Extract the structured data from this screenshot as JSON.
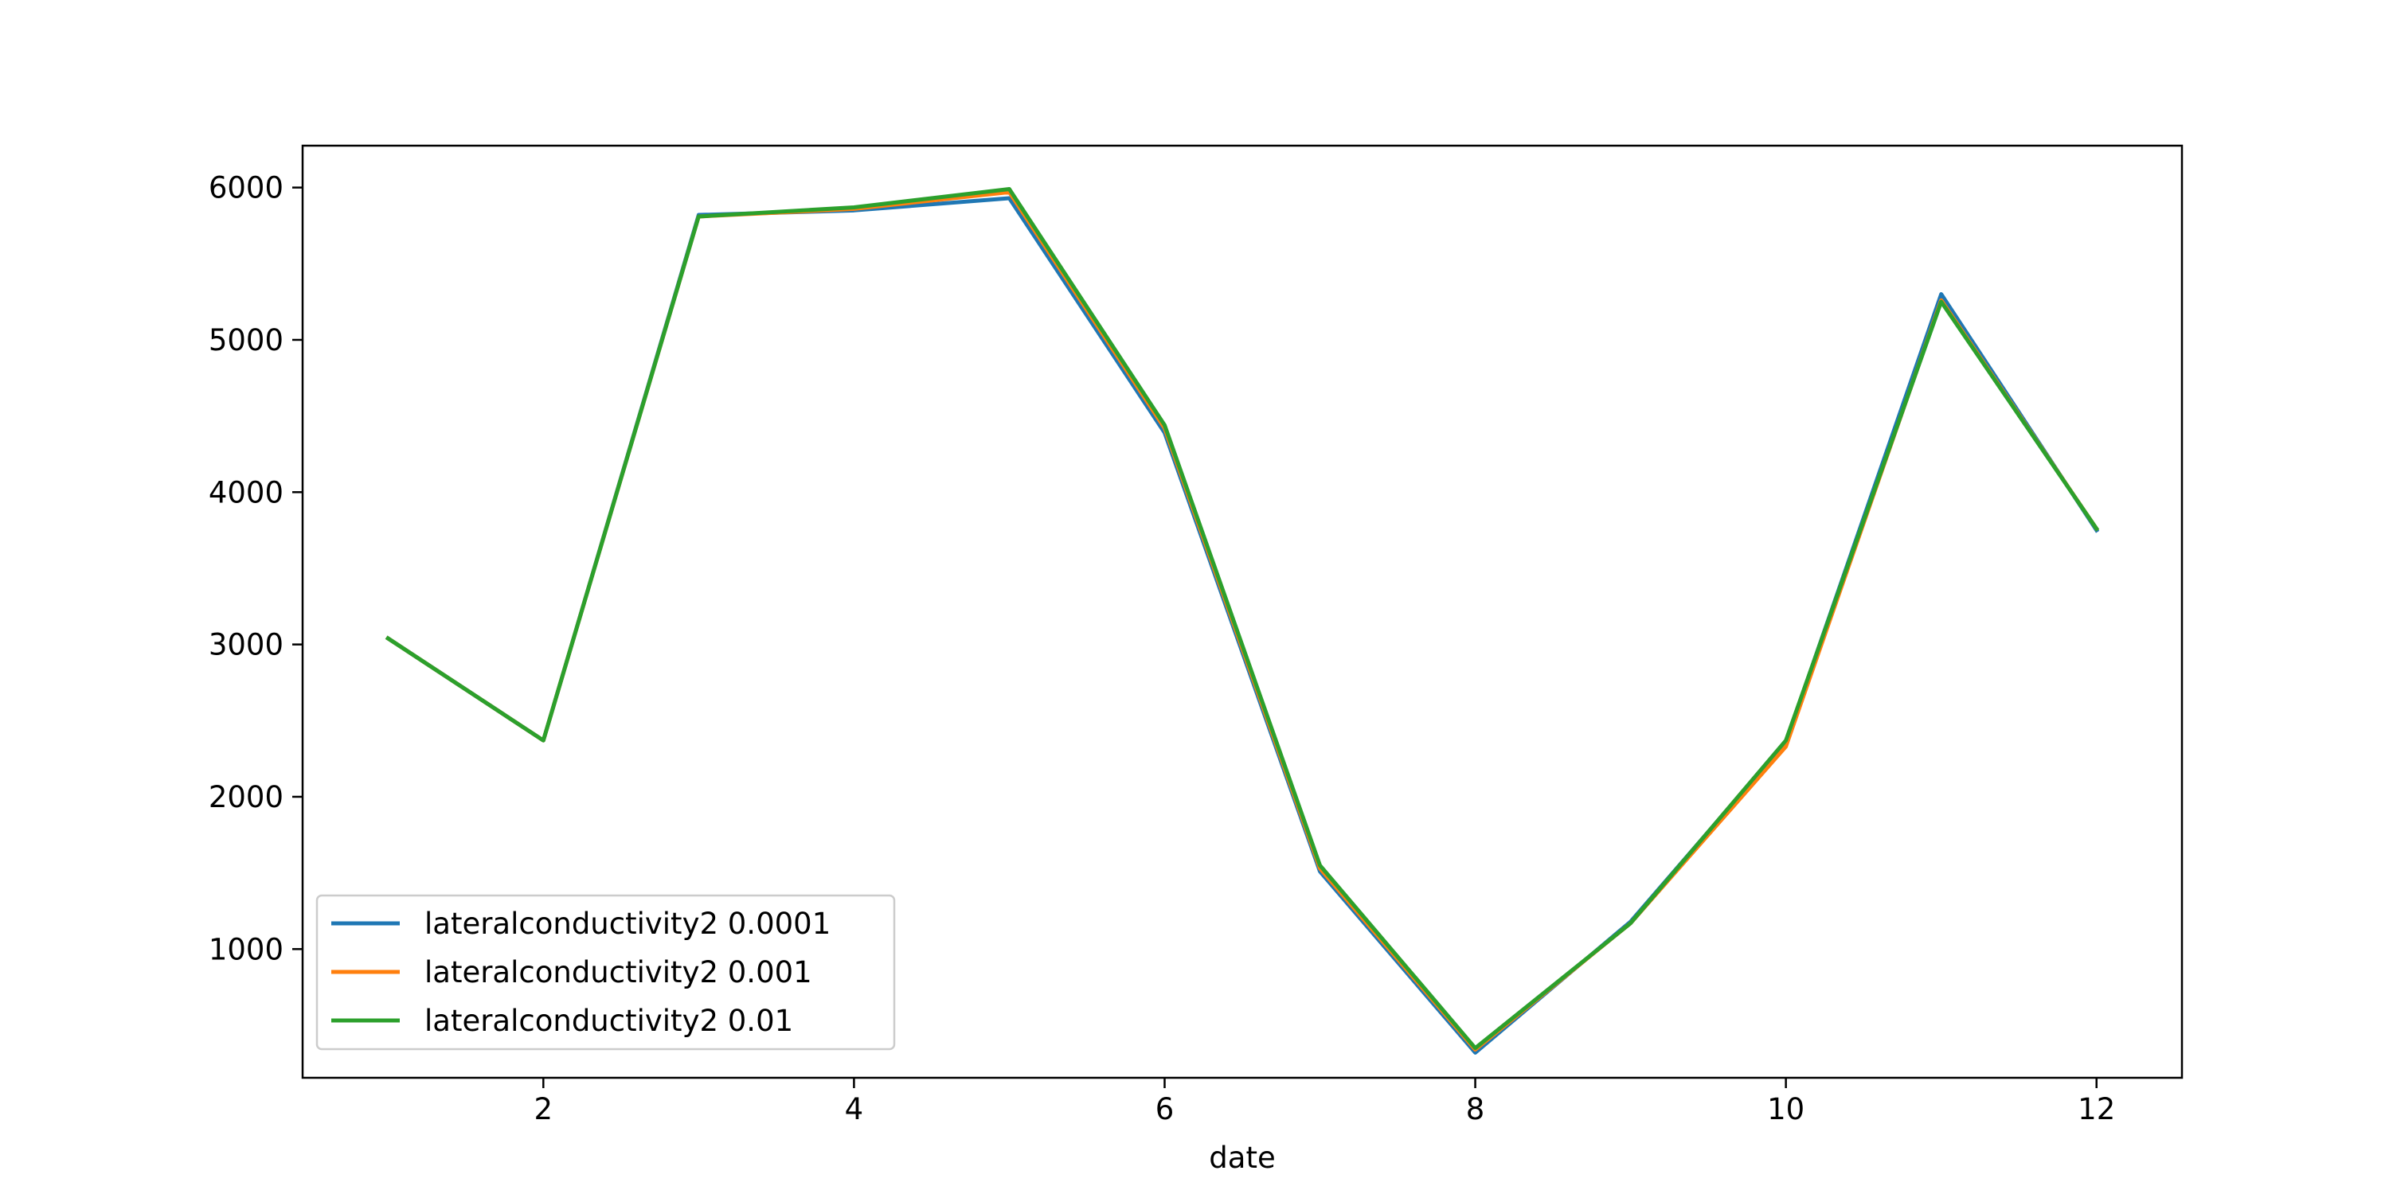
{
  "chart_data": {
    "type": "line",
    "xlabel": "date",
    "ylabel": "",
    "x": [
      1,
      2,
      3,
      4,
      5,
      6,
      7,
      8,
      9,
      10,
      11,
      12
    ],
    "xlim": [
      0.45,
      12.55
    ],
    "ylim": [
      155,
      6275
    ],
    "xticks": [
      2,
      4,
      6,
      8,
      10,
      12
    ],
    "xtick_labels": [
      "2",
      "4",
      "6",
      "8",
      "10",
      "12"
    ],
    "yticks": [
      1000,
      2000,
      3000,
      4000,
      5000,
      6000
    ],
    "ytick_labels": [
      "1000",
      "2000",
      "3000",
      "4000",
      "5000",
      "6000"
    ],
    "grid": false,
    "legend_position": "lower-left",
    "series": [
      {
        "name": "lateralconductivity2 0.0001",
        "color": "#1f77b4",
        "values": [
          3040,
          2370,
          5820,
          5850,
          5930,
          4390,
          1510,
          320,
          1180,
          2360,
          5300,
          3750
        ]
      },
      {
        "name": "lateralconductivity2 0.001",
        "color": "#ff7f0e",
        "values": [
          3040,
          2370,
          5810,
          5860,
          5970,
          4420,
          1530,
          340,
          1170,
          2330,
          5260,
          3760
        ]
      },
      {
        "name": "lateralconductivity2 0.01",
        "color": "#2ca02c",
        "values": [
          3040,
          2370,
          5810,
          5870,
          5990,
          4440,
          1550,
          350,
          1170,
          2370,
          5250,
          3760
        ]
      }
    ]
  }
}
